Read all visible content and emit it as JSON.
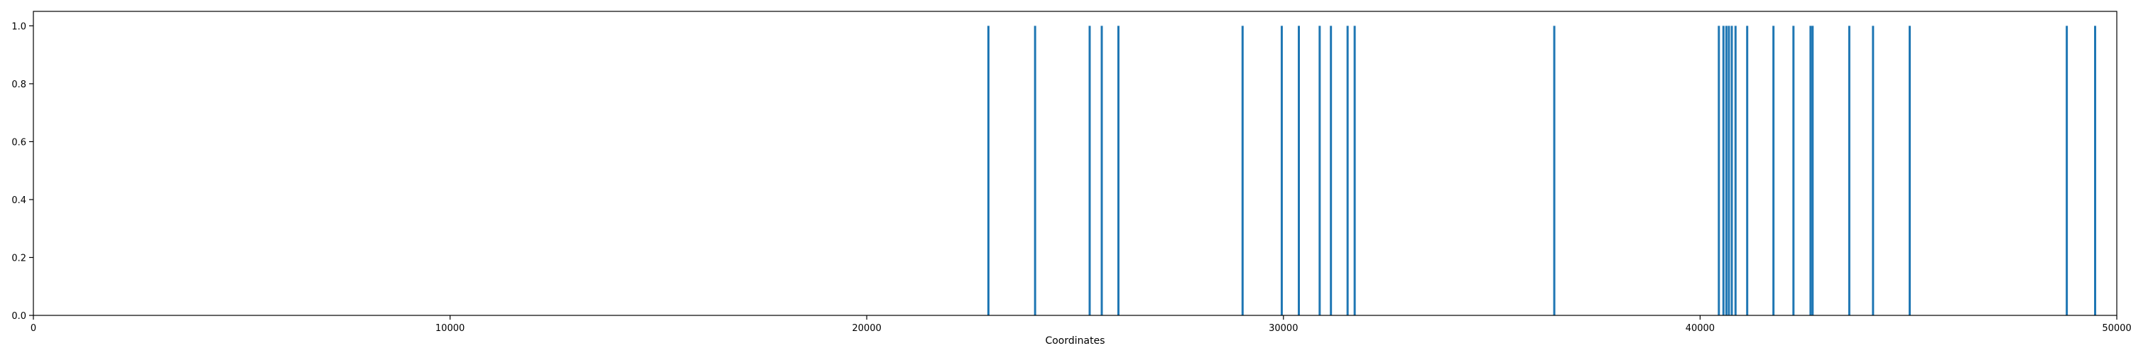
{
  "chart_data": {
    "type": "bar",
    "title": "",
    "xlabel": "Coordinates",
    "ylabel": "",
    "xlim": [
      0,
      50000
    ],
    "ylim": [
      0,
      1.05
    ],
    "grid": false,
    "legend": "none",
    "xticks": [
      0,
      10000,
      20000,
      30000,
      40000,
      50000
    ],
    "yticks": [
      0.0,
      0.2,
      0.4,
      0.6,
      0.8,
      1.0
    ],
    "xtick_labels": [
      "0",
      "10000",
      "20000",
      "30000",
      "40000",
      "50000"
    ],
    "ytick_labels": [
      "0.0",
      "0.2",
      "0.4",
      "0.6",
      "0.8",
      "1.0"
    ],
    "bar_color": "#1f77b4",
    "series": [
      {
        "x": [
          22920,
          24040,
          25350,
          25640,
          26040,
          29020,
          29960,
          30370,
          30870,
          31140,
          31540,
          31710,
          36500,
          40450,
          40560,
          40630,
          40690,
          40760,
          40850,
          41130,
          41760,
          42240,
          42650,
          42700,
          43580,
          44150,
          45030,
          48800,
          49480
        ],
        "values": [
          1,
          1,
          1,
          1,
          1,
          1,
          1,
          1,
          1,
          1,
          1,
          1,
          1,
          1,
          1,
          1,
          1,
          1,
          1,
          1,
          1,
          1,
          1,
          1,
          1,
          1,
          1,
          1,
          1
        ]
      }
    ]
  }
}
